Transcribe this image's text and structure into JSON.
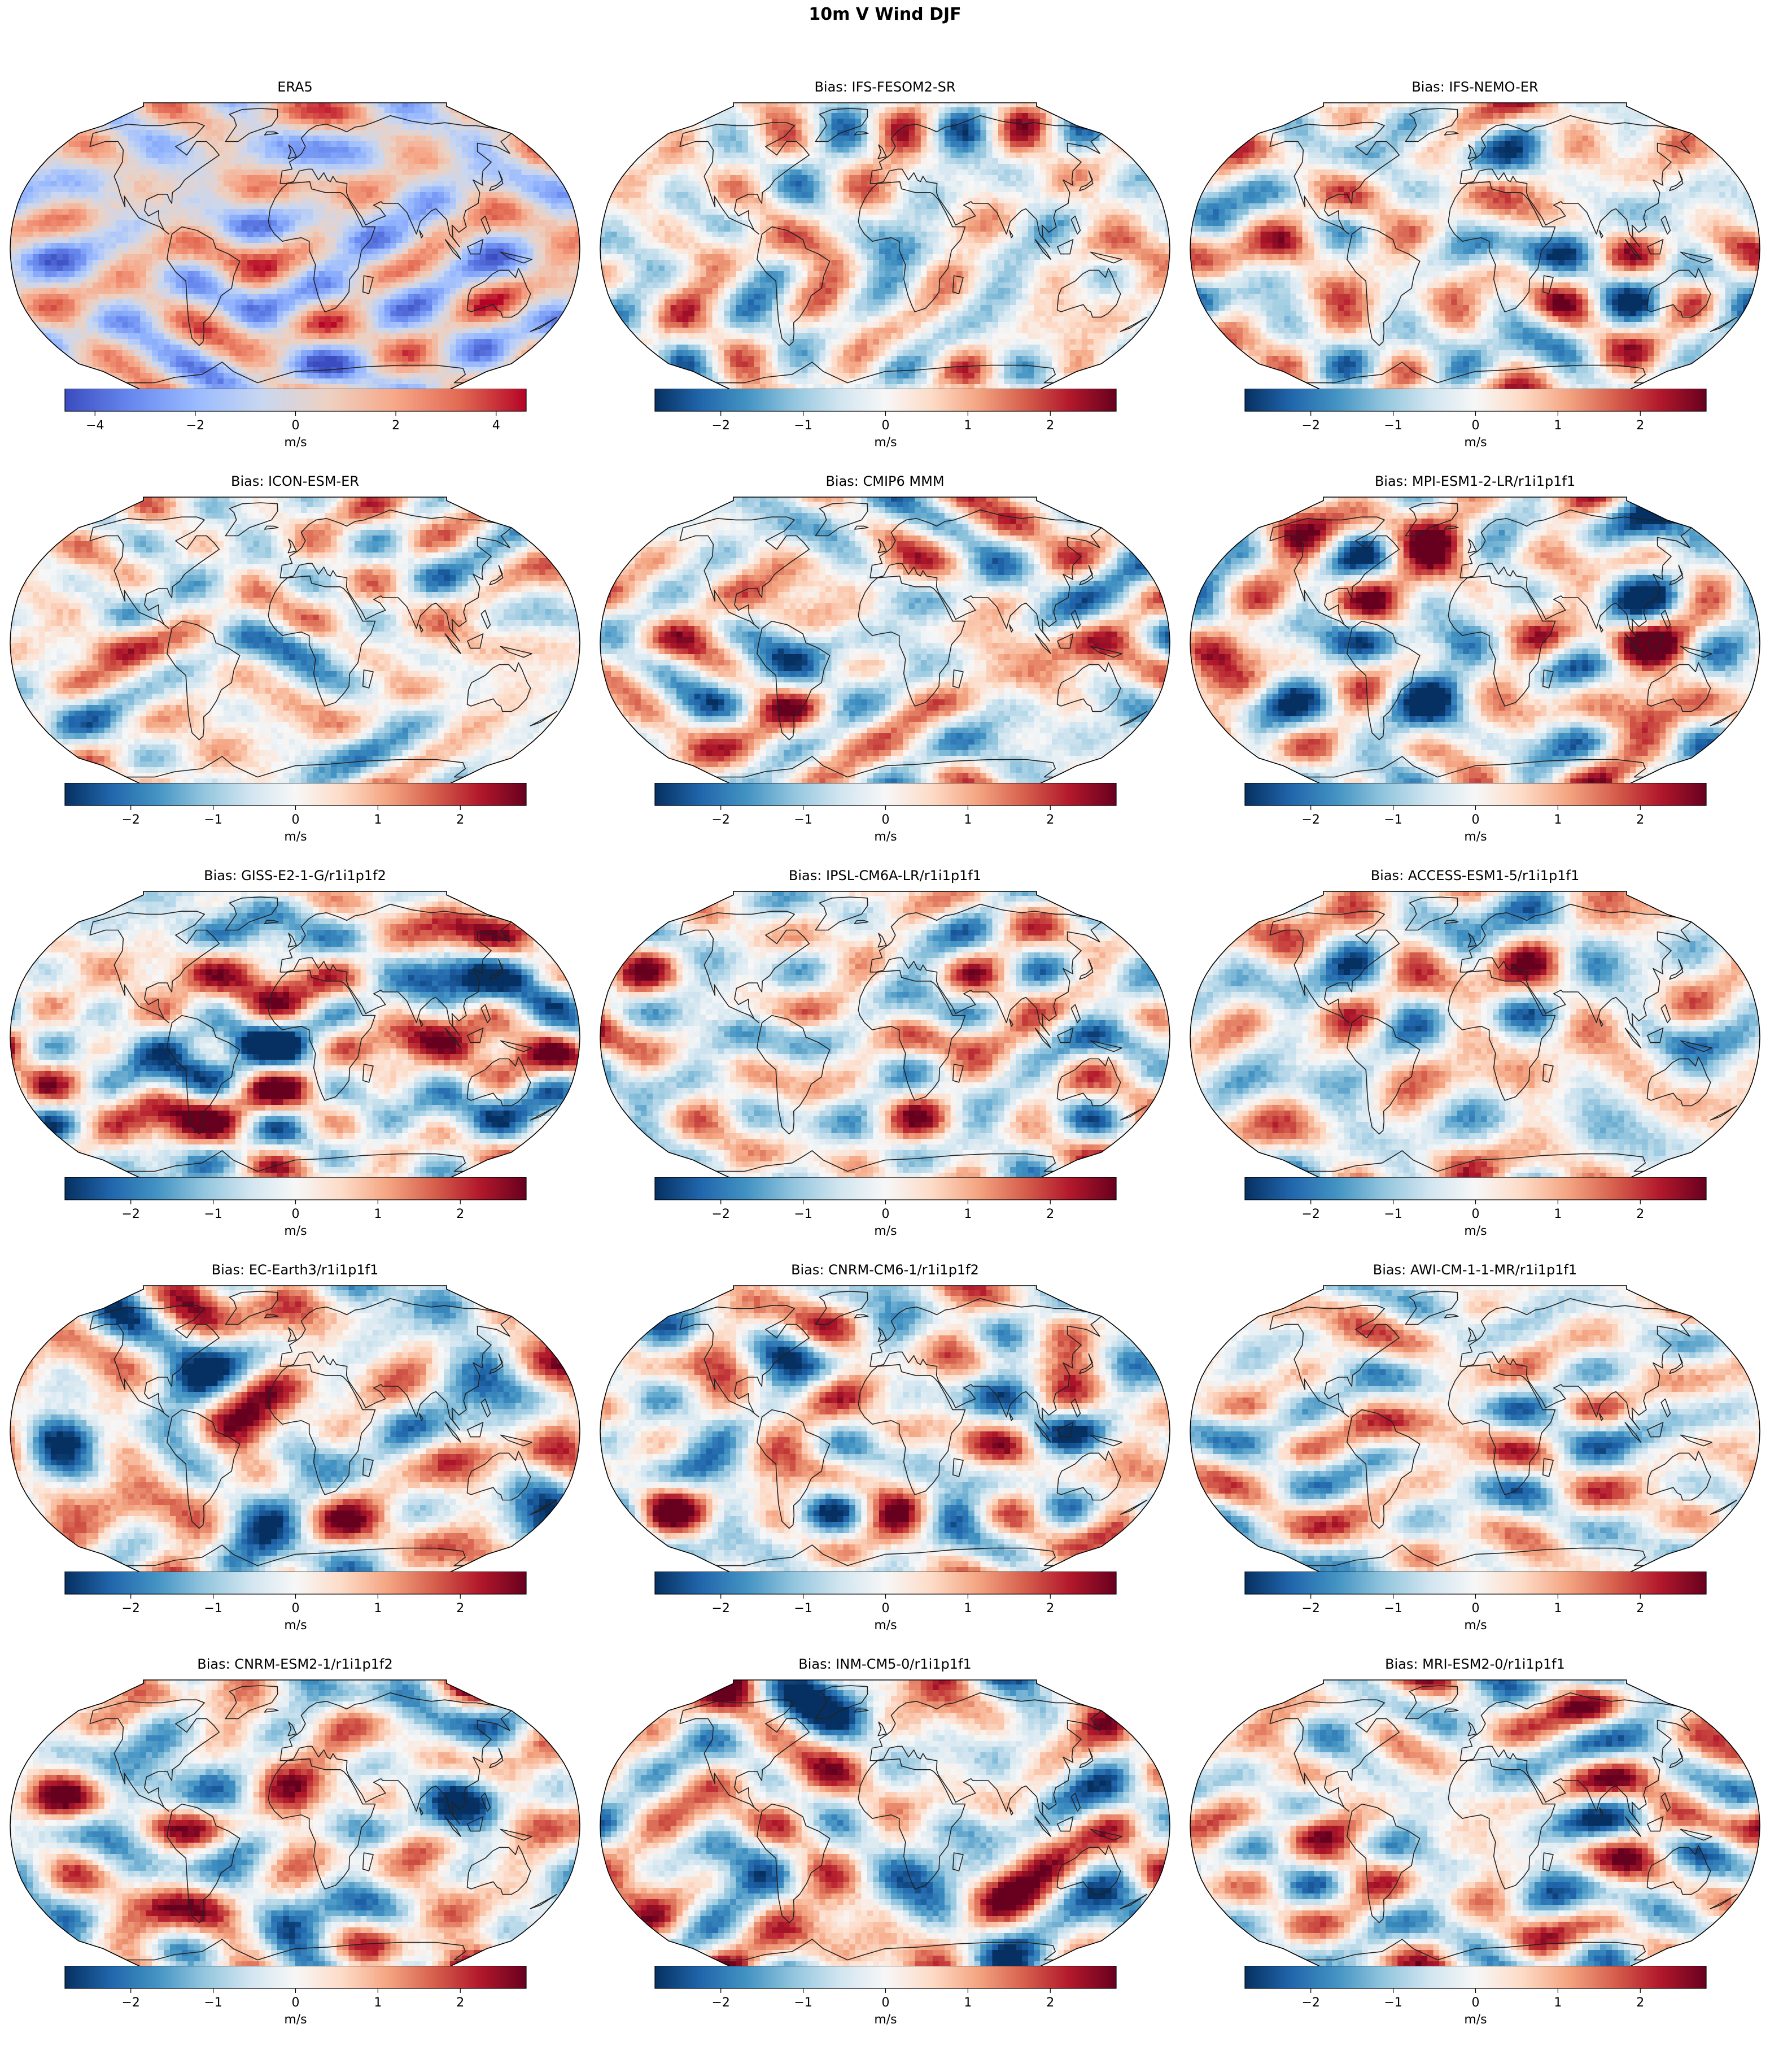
{
  "suptitle": "10m V Wind DJF",
  "units": "m/s",
  "colors": {
    "diverging": [
      "#053061",
      "#2166ac",
      "#4393c3",
      "#92c5de",
      "#d1e5f0",
      "#f7f7f7",
      "#fddbc7",
      "#f4a582",
      "#d6604d",
      "#b2182b",
      "#67001f"
    ],
    "coolwarm": [
      "#3b4cc0",
      "#6788ee",
      "#9abbff",
      "#c9d7f0",
      "#edd1c2",
      "#f7a889",
      "#e26952",
      "#b40426"
    ],
    "land_outline": "#222222"
  },
  "chart_data": [
    {
      "type": "heatmap",
      "title": "ERA5",
      "cmap": "coolwarm",
      "clim": [
        -4.6,
        4.6
      ],
      "ticks": [
        -4,
        -2,
        0,
        2,
        4
      ],
      "tick_labels": [
        "−4",
        "−2",
        "0",
        "2",
        "4"
      ],
      "colorbar_label": "m/s"
    },
    {
      "type": "heatmap",
      "title": "Bias: IFS-FESOM2-SR",
      "cmap": "RdBu_r",
      "clim": [
        -2.8,
        2.8
      ],
      "ticks": [
        -2,
        -1,
        0,
        1,
        2
      ],
      "tick_labels": [
        "−2",
        "−1",
        "0",
        "1",
        "2"
      ],
      "colorbar_label": "m/s"
    },
    {
      "type": "heatmap",
      "title": "Bias: IFS-NEMO-ER",
      "cmap": "RdBu_r",
      "clim": [
        -2.8,
        2.8
      ],
      "ticks": [
        -2,
        -1,
        0,
        1,
        2
      ],
      "tick_labels": [
        "−2",
        "−1",
        "0",
        "1",
        "2"
      ],
      "colorbar_label": "m/s"
    },
    {
      "type": "heatmap",
      "title": "Bias: ICON-ESM-ER",
      "cmap": "RdBu_r",
      "clim": [
        -2.8,
        2.8
      ],
      "ticks": [
        -2,
        -1,
        0,
        1,
        2
      ],
      "tick_labels": [
        "−2",
        "−1",
        "0",
        "1",
        "2"
      ],
      "colorbar_label": "m/s"
    },
    {
      "type": "heatmap",
      "title": "Bias: CMIP6 MMM",
      "cmap": "RdBu_r",
      "clim": [
        -2.8,
        2.8
      ],
      "ticks": [
        -2,
        -1,
        0,
        1,
        2
      ],
      "tick_labels": [
        "−2",
        "−1",
        "0",
        "1",
        "2"
      ],
      "colorbar_label": "m/s"
    },
    {
      "type": "heatmap",
      "title": "Bias: MPI-ESM1-2-LR/r1i1p1f1",
      "cmap": "RdBu_r",
      "clim": [
        -2.8,
        2.8
      ],
      "ticks": [
        -2,
        -1,
        0,
        1,
        2
      ],
      "tick_labels": [
        "−2",
        "−1",
        "0",
        "1",
        "2"
      ],
      "colorbar_label": "m/s"
    },
    {
      "type": "heatmap",
      "title": "Bias: GISS-E2-1-G/r1i1p1f2",
      "cmap": "RdBu_r",
      "clim": [
        -2.8,
        2.8
      ],
      "ticks": [
        -2,
        -1,
        0,
        1,
        2
      ],
      "tick_labels": [
        "−2",
        "−1",
        "0",
        "1",
        "2"
      ],
      "colorbar_label": "m/s"
    },
    {
      "type": "heatmap",
      "title": "Bias: IPSL-CM6A-LR/r1i1p1f1",
      "cmap": "RdBu_r",
      "clim": [
        -2.8,
        2.8
      ],
      "ticks": [
        -2,
        -1,
        0,
        1,
        2
      ],
      "tick_labels": [
        "−2",
        "−1",
        "0",
        "1",
        "2"
      ],
      "colorbar_label": "m/s"
    },
    {
      "type": "heatmap",
      "title": "Bias: ACCESS-ESM1-5/r1i1p1f1",
      "cmap": "RdBu_r",
      "clim": [
        -2.8,
        2.8
      ],
      "ticks": [
        -2,
        -1,
        0,
        1,
        2
      ],
      "tick_labels": [
        "−2",
        "−1",
        "0",
        "1",
        "2"
      ],
      "colorbar_label": "m/s"
    },
    {
      "type": "heatmap",
      "title": "Bias: EC-Earth3/r1i1p1f1",
      "cmap": "RdBu_r",
      "clim": [
        -2.8,
        2.8
      ],
      "ticks": [
        -2,
        -1,
        0,
        1,
        2
      ],
      "tick_labels": [
        "−2",
        "−1",
        "0",
        "1",
        "2"
      ],
      "colorbar_label": "m/s"
    },
    {
      "type": "heatmap",
      "title": "Bias: CNRM-CM6-1/r1i1p1f2",
      "cmap": "RdBu_r",
      "clim": [
        -2.8,
        2.8
      ],
      "ticks": [
        -2,
        -1,
        0,
        1,
        2
      ],
      "tick_labels": [
        "−2",
        "−1",
        "0",
        "1",
        "2"
      ],
      "colorbar_label": "m/s"
    },
    {
      "type": "heatmap",
      "title": "Bias: AWI-CM-1-1-MR/r1i1p1f1",
      "cmap": "RdBu_r",
      "clim": [
        -2.8,
        2.8
      ],
      "ticks": [
        -2,
        -1,
        0,
        1,
        2
      ],
      "tick_labels": [
        "−2",
        "−1",
        "0",
        "1",
        "2"
      ],
      "colorbar_label": "m/s"
    },
    {
      "type": "heatmap",
      "title": "Bias: CNRM-ESM2-1/r1i1p1f2",
      "cmap": "RdBu_r",
      "clim": [
        -2.8,
        2.8
      ],
      "ticks": [
        -2,
        -1,
        0,
        1,
        2
      ],
      "tick_labels": [
        "−2",
        "−1",
        "0",
        "1",
        "2"
      ],
      "colorbar_label": "m/s"
    },
    {
      "type": "heatmap",
      "title": "Bias: INM-CM5-0/r1i1p1f1",
      "cmap": "RdBu_r",
      "clim": [
        -2.8,
        2.8
      ],
      "ticks": [
        -2,
        -1,
        0,
        1,
        2
      ],
      "tick_labels": [
        "−2",
        "−1",
        "0",
        "1",
        "2"
      ],
      "colorbar_label": "m/s"
    },
    {
      "type": "heatmap",
      "title": "Bias: MRI-ESM2-0/r1i1p1f1",
      "cmap": "RdBu_r",
      "clim": [
        -2.8,
        2.8
      ],
      "ticks": [
        -2,
        -1,
        0,
        1,
        2
      ],
      "tick_labels": [
        "−2",
        "−1",
        "0",
        "1",
        "2"
      ],
      "colorbar_label": "m/s"
    }
  ]
}
